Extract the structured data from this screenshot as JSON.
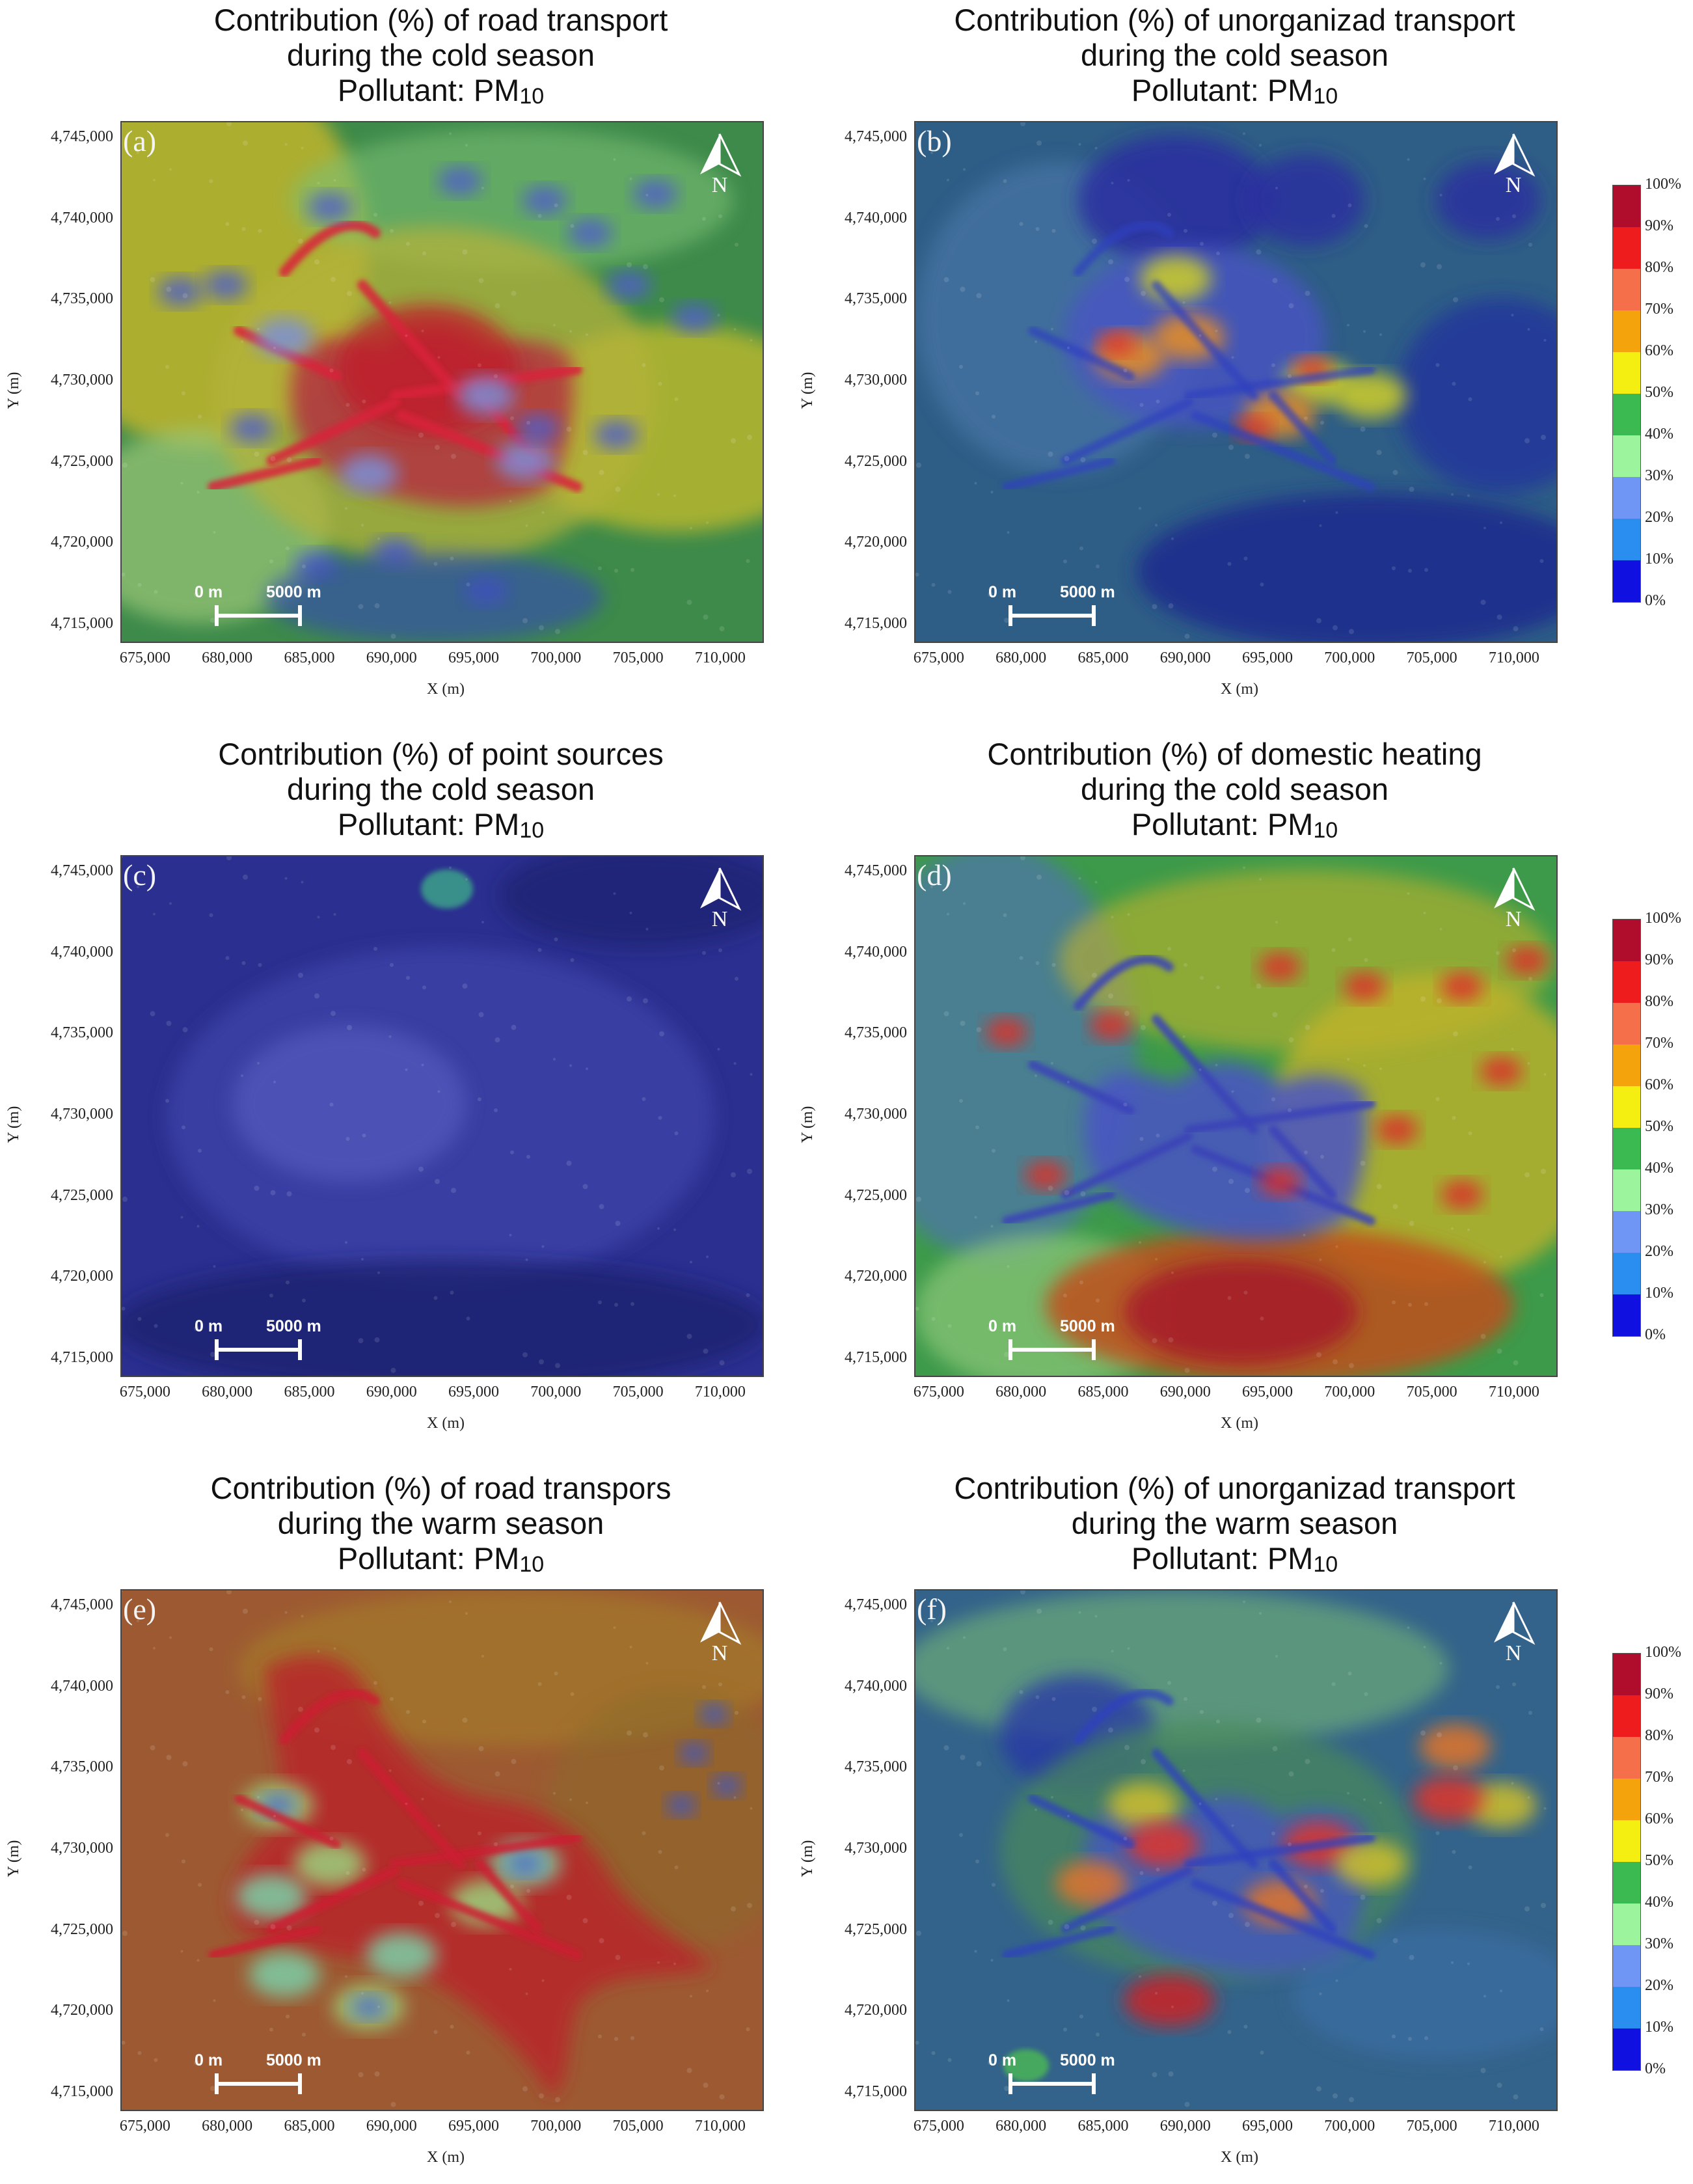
{
  "panels": [
    {
      "label": "(a)",
      "title_lines": [
        "Contribution (%) of road transport",
        "during the cold season",
        "Pollutant: PM"
      ],
      "subscript": "10",
      "scheme": "cold-road"
    },
    {
      "label": "(b)",
      "title_lines": [
        "Contribution (%) of unorganizad transport",
        "during the cold season",
        "Pollutant: PM"
      ],
      "subscript": "10",
      "scheme": "cold-unorg"
    },
    {
      "label": "(c)",
      "title_lines": [
        "Contribution (%) of point sources",
        "during the cold season",
        "Pollutant: PM"
      ],
      "subscript": "10",
      "scheme": "cold-point"
    },
    {
      "label": "(d)",
      "title_lines": [
        "Contribution (%) of domestic heating",
        "during the cold season",
        "Pollutant: PM"
      ],
      "subscript": "10",
      "scheme": "cold-heating"
    },
    {
      "label": "(e)",
      "title_lines": [
        "Contribution (%) of road transpors",
        "during the warm season",
        "Pollutant: PM"
      ],
      "subscript": "10",
      "scheme": "warm-road"
    },
    {
      "label": "(f)",
      "title_lines": [
        "Contribution (%) of unorganizad transport",
        "during the warm season",
        "Pollutant: PM"
      ],
      "subscript": "10",
      "scheme": "warm-unorg"
    }
  ],
  "axes": {
    "xlabel": "X (m)",
    "ylabel": "Y (m)",
    "x_ticks": [
      "675,000",
      "680,000",
      "685,000",
      "690,000",
      "695,000",
      "700,000",
      "705,000",
      "710,000"
    ],
    "y_ticks": [
      "4,745,000",
      "4,740,000",
      "4,735,000",
      "4,730,000",
      "4,725,000",
      "4,720,000",
      "4,715,000"
    ],
    "x_range": [
      673500,
      712500
    ],
    "y_range": [
      4714000,
      4746000
    ]
  },
  "scale_bar": {
    "start": "0 m",
    "end": "5000 m"
  },
  "north_arrow": {
    "letter": "N"
  },
  "legend": {
    "ticks": [
      "100%",
      "90%",
      "80%",
      "70%",
      "60%",
      "50%",
      "40%",
      "30%",
      "20%",
      "10%",
      "0%"
    ],
    "colors_low_to_high": [
      "#1010e0",
      "#2a8ef0",
      "#6f95f5",
      "#9cf49c",
      "#3cba52",
      "#f4ef10",
      "#f5a30d",
      "#f5704a",
      "#ee1c1c",
      "#b00c2c"
    ]
  }
}
